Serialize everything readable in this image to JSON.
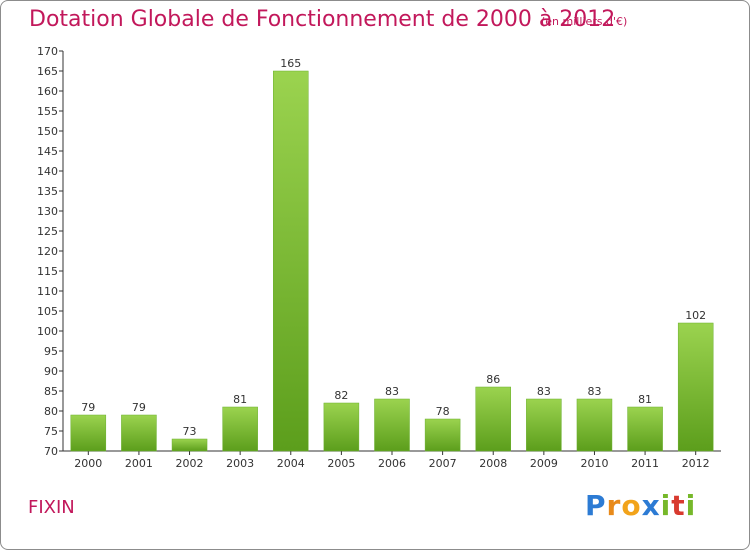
{
  "chart_data": {
    "type": "bar",
    "title": "Dotation Globale de Fonctionnement de 2000 à 2012",
    "subtitle": "(en milliers d'€)",
    "categories": [
      "2000",
      "2001",
      "2002",
      "2003",
      "2004",
      "2005",
      "2006",
      "2007",
      "2008",
      "2009",
      "2010",
      "2011",
      "2012"
    ],
    "values": [
      79,
      79,
      73,
      81,
      165,
      82,
      83,
      78,
      86,
      83,
      83,
      81,
      102
    ],
    "xlabel": "",
    "ylabel": "",
    "ylim": [
      70,
      170
    ],
    "yticks": [
      70,
      75,
      80,
      85,
      90,
      95,
      100,
      105,
      110,
      115,
      120,
      125,
      130,
      135,
      140,
      145,
      150,
      155,
      160,
      165,
      170
    ],
    "grid": false,
    "bar_color": "#7cc140",
    "bar_color_dark": "#5e9e26"
  },
  "footer": {
    "commune": "FIXIN",
    "logo_letters": [
      "P",
      "r",
      "o",
      "x",
      "i",
      "t",
      "i"
    ]
  },
  "colors": {
    "title": "#c2185b",
    "axis": "#333333"
  }
}
